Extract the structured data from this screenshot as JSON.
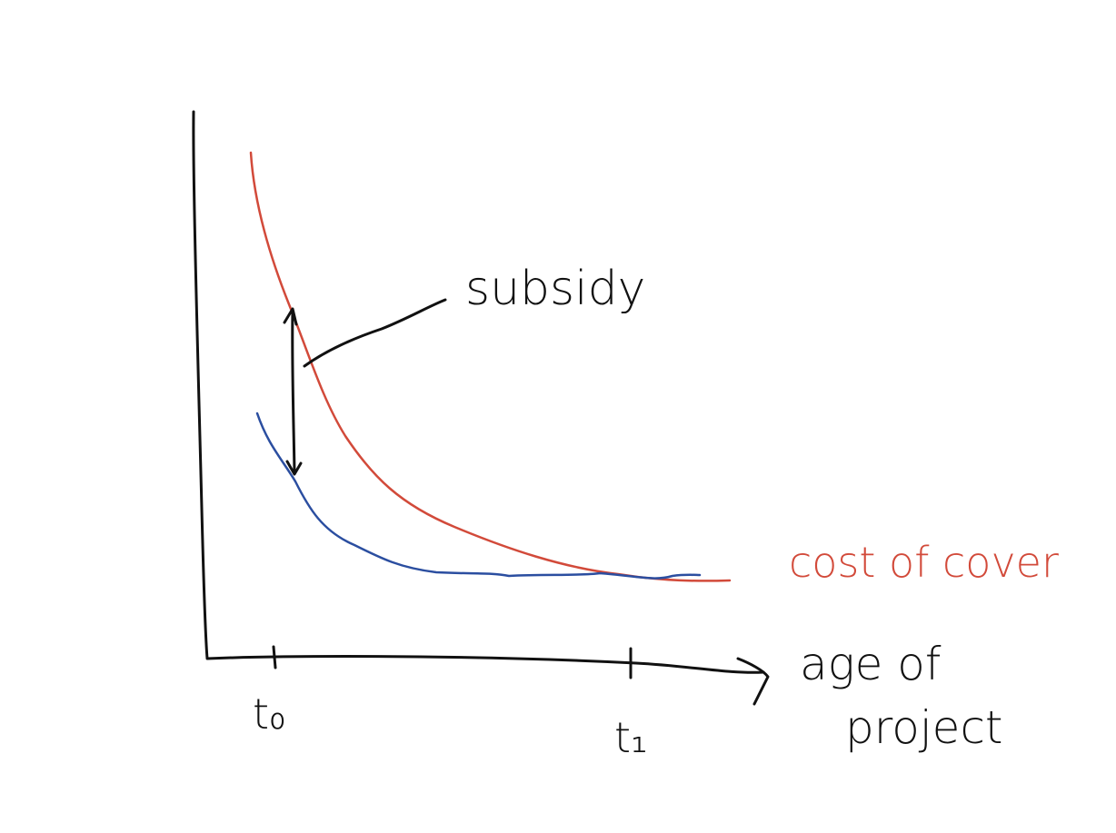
{
  "annotation": "subsidy",
  "curve_label": "cost of cover",
  "x_axis_label": [
    "age of",
    "project"
  ],
  "ticks": [
    "t₀",
    "t₁"
  ]
}
